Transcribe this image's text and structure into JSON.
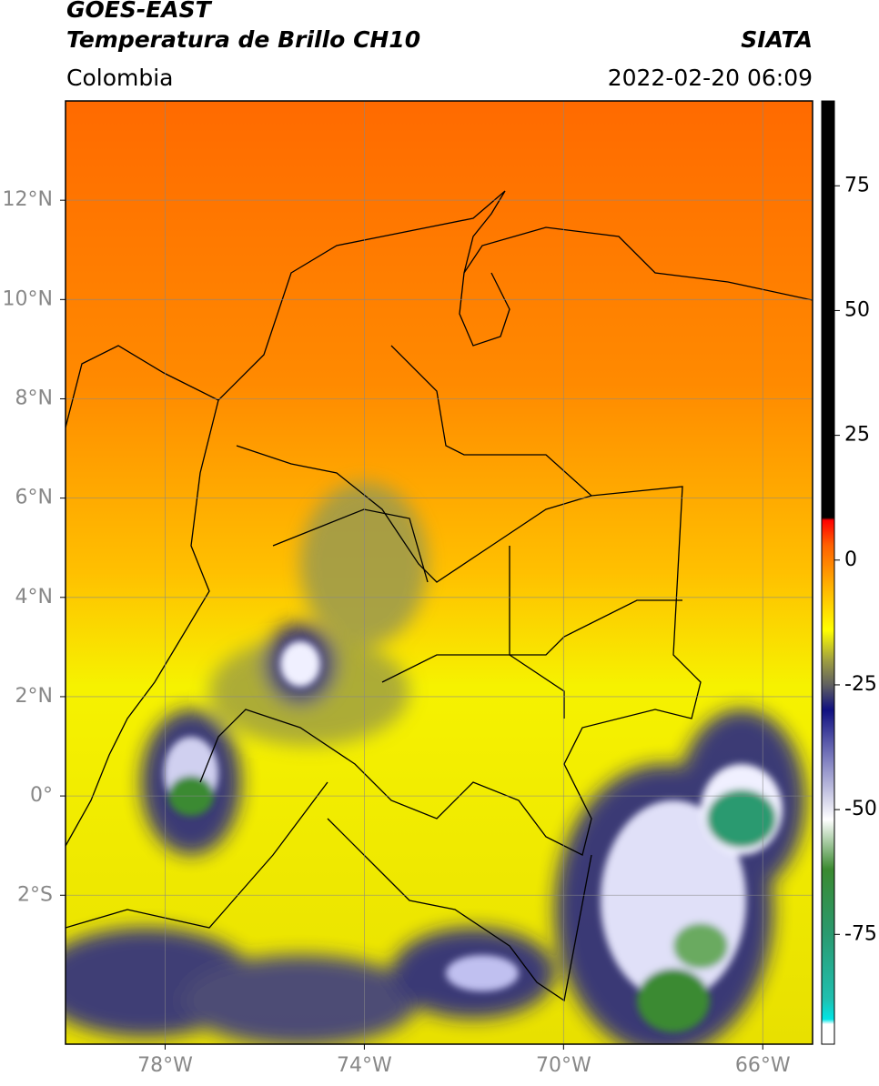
{
  "header": {
    "title": "GOES-EAST",
    "subtitle": "Temperatura de Brillo CH10",
    "source": "SIATA",
    "region": "Colombia",
    "datetime": "2022-02-20 06:09"
  },
  "map": {
    "xlim": [
      -80,
      -65
    ],
    "ylim": [
      -5,
      14
    ],
    "xticks": [
      {
        "value": -78,
        "label": "78°W"
      },
      {
        "value": -74,
        "label": "74°W"
      },
      {
        "value": -70,
        "label": "70°W"
      },
      {
        "value": -66,
        "label": "66°W"
      }
    ],
    "yticks": [
      {
        "value": 12,
        "label": "12°N"
      },
      {
        "value": 10,
        "label": "10°N"
      },
      {
        "value": 8,
        "label": "8°N"
      },
      {
        "value": 6,
        "label": "6°N"
      },
      {
        "value": 4,
        "label": "4°N"
      },
      {
        "value": 2,
        "label": "2°N"
      },
      {
        "value": 0,
        "label": "0°"
      },
      {
        "value": -2,
        "label": "2°S"
      }
    ],
    "grid": true
  },
  "colorbar": {
    "lim": [
      -97,
      92
    ],
    "ticks": [
      75,
      50,
      25,
      0,
      -25,
      -50,
      -75
    ],
    "colormap": [
      {
        "value": -97,
        "color": "#ffffff"
      },
      {
        "value": -93,
        "color": "#ffffff"
      },
      {
        "value": -92,
        "color": "#00e5e5"
      },
      {
        "value": -88,
        "color": "#20c0b0"
      },
      {
        "value": -75,
        "color": "#2a9a70"
      },
      {
        "value": -62,
        "color": "#3a8a30"
      },
      {
        "value": -52,
        "color": "#ffffff"
      },
      {
        "value": -40,
        "color": "#8080c0"
      },
      {
        "value": -30,
        "color": "#101080"
      },
      {
        "value": -25,
        "color": "#606060"
      },
      {
        "value": -20,
        "color": "#a0a040"
      },
      {
        "value": -14,
        "color": "#ffff00"
      },
      {
        "value": -5,
        "color": "#ffb000"
      },
      {
        "value": 3,
        "color": "#ff6000"
      },
      {
        "value": 8,
        "color": "#ff0000"
      },
      {
        "value": 8.5,
        "color": "#000000"
      },
      {
        "value": 92,
        "color": "#000000"
      }
    ]
  }
}
